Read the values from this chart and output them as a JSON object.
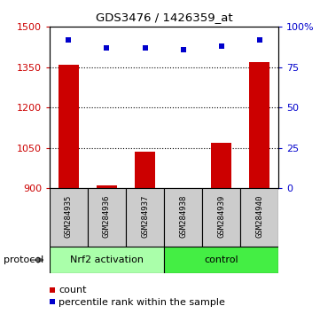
{
  "title": "GDS3476 / 1426359_at",
  "samples": [
    "GSM284935",
    "GSM284936",
    "GSM284937",
    "GSM284938",
    "GSM284939",
    "GSM284940"
  ],
  "counts": [
    1358,
    912,
    1037,
    901,
    1068,
    1368
  ],
  "percentile_ranks": [
    92,
    87,
    87,
    86,
    88,
    92
  ],
  "ylim_left": [
    900,
    1500
  ],
  "ylim_right": [
    0,
    100
  ],
  "yticks_left": [
    900,
    1050,
    1200,
    1350,
    1500
  ],
  "yticks_right": [
    0,
    25,
    50,
    75,
    100
  ],
  "ytick_labels_right": [
    "0",
    "25",
    "50",
    "75",
    "100%"
  ],
  "bar_color": "#cc0000",
  "dot_color": "#0000cc",
  "group_nrf2_color": "#aaffaa",
  "group_ctrl_color": "#44ee44",
  "protocol_label": "protocol",
  "legend_count_label": "count",
  "legend_percentile_label": "percentile rank within the sample",
  "sample_box_color": "#cccccc",
  "fig_width": 3.61,
  "fig_height": 3.54,
  "dpi": 100
}
